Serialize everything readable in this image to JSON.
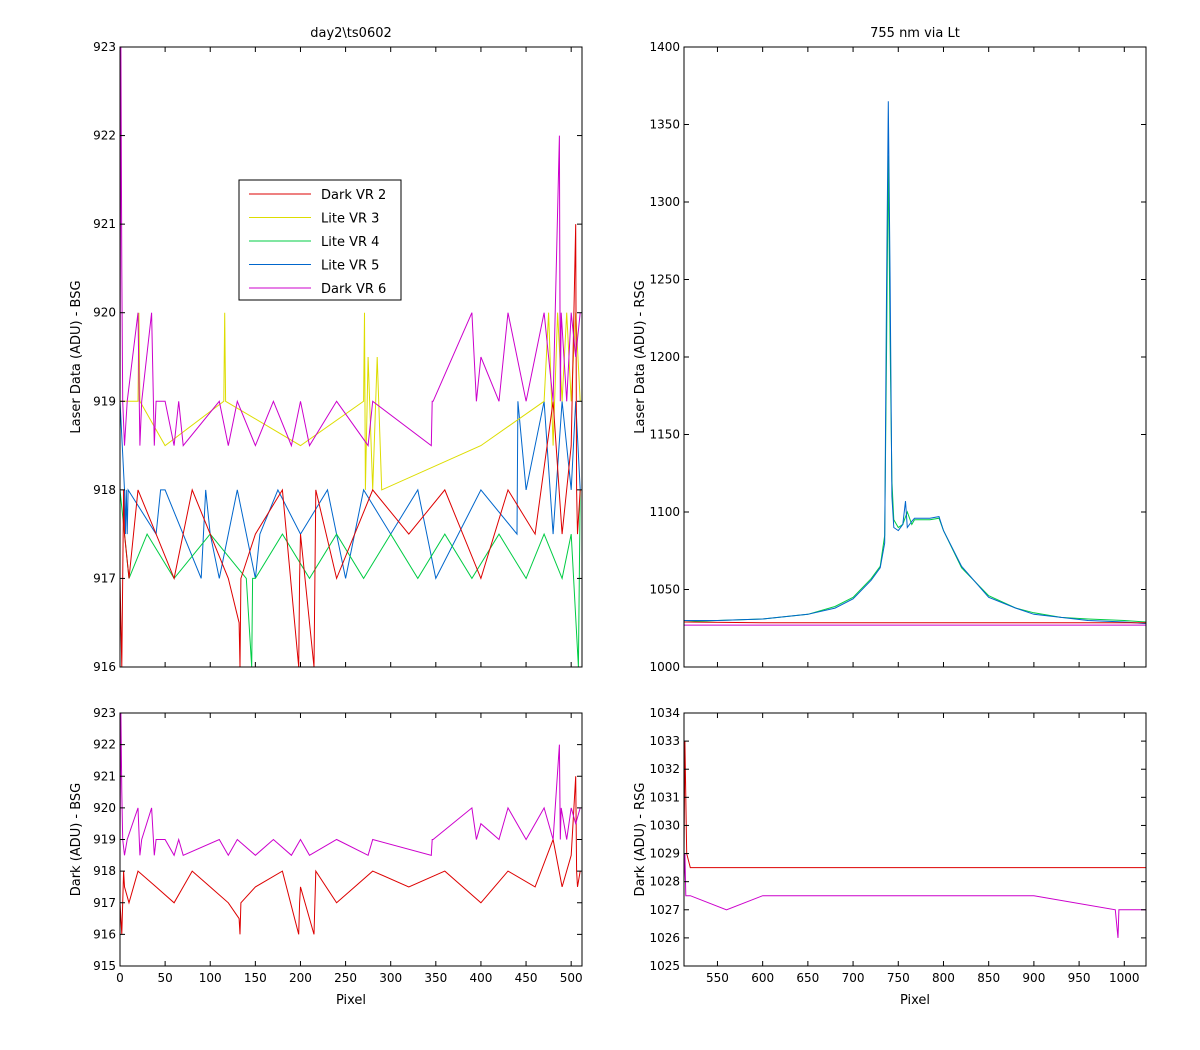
{
  "chart_data": [
    {
      "id": "tl",
      "type": "line",
      "title": "day2\\ts0602",
      "xlabel": "",
      "ylabel": "Laser Data (ADU) - BSG",
      "xlim": [
        0,
        512
      ],
      "ylim": [
        916,
        923
      ],
      "xticks": [],
      "yticks": [
        916,
        917,
        918,
        919,
        920,
        921,
        922,
        923
      ],
      "legend": {
        "position": "upper-center",
        "entries": [
          "Dark VR 2",
          "Lite VR 3",
          "Lite VR 4",
          "Lite VR 5",
          "Dark VR 6"
        ]
      },
      "series": [
        {
          "name": "Lite VR 5",
          "color": "#0066cc",
          "x": [
            0,
            5,
            6,
            7,
            8,
            9,
            40,
            45,
            50,
            90,
            95,
            100,
            110,
            130,
            150,
            155,
            175,
            200,
            230,
            250,
            270,
            300,
            330,
            350,
            400,
            440,
            441,
            450,
            470,
            480,
            490,
            500,
            505,
            510
          ],
          "y": [
            919,
            918,
            917.5,
            918,
            917.5,
            918,
            917.5,
            918,
            918,
            917,
            918,
            917.5,
            917,
            918,
            917,
            917.5,
            918,
            917.5,
            918,
            917,
            918,
            917.5,
            918,
            917,
            918,
            917.5,
            919,
            918,
            919,
            917.5,
            919,
            918,
            919,
            918
          ]
        },
        {
          "name": "Lite VR 4",
          "color": "#00cc44",
          "x": [
            0,
            5,
            10,
            30,
            60,
            100,
            140,
            146,
            147,
            150,
            180,
            210,
            240,
            270,
            300,
            330,
            360,
            390,
            420,
            450,
            470,
            490,
            500,
            508,
            509,
            510
          ],
          "y": [
            918,
            917.5,
            917,
            917.5,
            917,
            917.5,
            917,
            916,
            917,
            917,
            917.5,
            917,
            917.5,
            917,
            917.5,
            917,
            917.5,
            917,
            917.5,
            917,
            917.5,
            917,
            917.5,
            916,
            917,
            918
          ]
        },
        {
          "name": "Lite VR 3",
          "color": "#dddd00",
          "x": [
            0,
            20,
            21,
            22,
            50,
            115,
            116,
            117,
            200,
            270,
            271,
            272,
            275,
            280,
            285,
            290,
            400,
            470,
            475,
            480,
            485,
            490,
            495,
            500,
            505,
            510
          ],
          "y": [
            919,
            919,
            920,
            919,
            918.5,
            919,
            920,
            919,
            918.5,
            919,
            920,
            918,
            919.5,
            918,
            919.5,
            918,
            918.5,
            919,
            920,
            918.5,
            920,
            919,
            920,
            919,
            920,
            919
          ]
        },
        {
          "name": "Dark VR 2",
          "color": "#dd0000",
          "x": [
            0,
            2,
            3,
            4,
            5,
            10,
            20,
            40,
            60,
            80,
            100,
            120,
            132,
            133,
            134,
            150,
            180,
            198,
            199,
            200,
            215,
            216,
            217,
            240,
            280,
            320,
            360,
            400,
            430,
            460,
            480,
            490,
            500,
            505,
            506,
            507,
            510
          ],
          "y": [
            917,
            916,
            917,
            918,
            917.5,
            917,
            918,
            917.5,
            917,
            918,
            917.5,
            917,
            916.5,
            916,
            917,
            917.5,
            918,
            916,
            917,
            917.5,
            916,
            917,
            918,
            917,
            918,
            917.5,
            918,
            917,
            918,
            917.5,
            919,
            917.5,
            918.5,
            921,
            918,
            917.5,
            918
          ]
        },
        {
          "name": "Dark VR 6",
          "color": "#cc00cc",
          "x": [
            0,
            1,
            2,
            3,
            5,
            8,
            20,
            22,
            24,
            35,
            38,
            40,
            50,
            60,
            65,
            70,
            110,
            120,
            130,
            150,
            170,
            190,
            200,
            210,
            240,
            275,
            280,
            345,
            346,
            347,
            390,
            395,
            400,
            420,
            430,
            450,
            460,
            470,
            480,
            487,
            488,
            489,
            495,
            500,
            505,
            510
          ],
          "y": [
            919,
            923,
            920.5,
            919,
            918.5,
            919,
            920,
            918.5,
            919,
            920,
            918.5,
            919,
            919,
            918.5,
            919,
            918.5,
            919,
            918.5,
            919,
            918.5,
            919,
            918.5,
            919,
            918.5,
            919,
            918.5,
            919,
            918.5,
            919,
            919,
            920,
            919,
            919.5,
            919,
            920,
            919,
            919.5,
            920,
            919,
            922,
            919,
            920,
            919,
            920,
            919.5,
            920
          ]
        }
      ]
    },
    {
      "id": "tr",
      "type": "line",
      "title": "755 nm via Lt",
      "xlabel": "",
      "ylabel": "Laser Data (ADU) - RSG",
      "xlim": [
        513,
        1024
      ],
      "ylim": [
        1000,
        1400
      ],
      "xticks": [],
      "yticks": [
        1000,
        1050,
        1100,
        1150,
        1200,
        1250,
        1300,
        1350,
        1400
      ],
      "series": [
        {
          "name": "Lite VR 4",
          "color": "#00cc44",
          "x": [
            513,
            550,
            600,
            650,
            680,
            700,
            720,
            730,
            735,
            737,
            739,
            741,
            743,
            745,
            750,
            755,
            760,
            765,
            768,
            785,
            795,
            800,
            820,
            850,
            880,
            900,
            930,
            960,
            1000,
            1024
          ],
          "y": [
            1029,
            1030,
            1031,
            1034,
            1039,
            1045,
            1057,
            1065,
            1085,
            1200,
            1330,
            1210,
            1120,
            1095,
            1090,
            1092,
            1100,
            1092,
            1095,
            1095,
            1096,
            1088,
            1064,
            1046,
            1038,
            1035,
            1032,
            1031,
            1030,
            1029
          ]
        },
        {
          "name": "Lite VR 5",
          "color": "#0066cc",
          "x": [
            513,
            550,
            600,
            650,
            680,
            700,
            720,
            730,
            735,
            737,
            739,
            741,
            743,
            745,
            750,
            755,
            758,
            760,
            765,
            768,
            785,
            795,
            800,
            820,
            850,
            880,
            900,
            930,
            960,
            1000,
            1024
          ],
          "y": [
            1030,
            1030,
            1031,
            1034,
            1038,
            1044,
            1056,
            1064,
            1080,
            1240,
            1365,
            1250,
            1110,
            1090,
            1088,
            1092,
            1107,
            1090,
            1094,
            1096,
            1096,
            1097,
            1088,
            1065,
            1045,
            1038,
            1034,
            1032,
            1030,
            1029,
            1028
          ]
        },
        {
          "name": "Dark VR 2",
          "color": "#dd0000",
          "x": [
            513,
            600,
            700,
            800,
            900,
            1000,
            1024
          ],
          "y": [
            1029,
            1028.5,
            1028.5,
            1028.5,
            1028.5,
            1028.5,
            1028.5
          ]
        },
        {
          "name": "Dark VR 6",
          "color": "#cc00cc",
          "x": [
            513,
            600,
            700,
            800,
            900,
            1000,
            1024
          ],
          "y": [
            1027,
            1027,
            1027,
            1027,
            1027,
            1027,
            1027
          ]
        }
      ]
    },
    {
      "id": "bl",
      "type": "line",
      "title": "",
      "xlabel": "Pixel",
      "ylabel": "Dark (ADU) - BSG",
      "xlim": [
        0,
        512
      ],
      "ylim": [
        915,
        923
      ],
      "xticks": [
        0,
        50,
        100,
        150,
        200,
        250,
        300,
        350,
        400,
        450,
        500
      ],
      "yticks": [
        915,
        916,
        917,
        918,
        919,
        920,
        921,
        922,
        923
      ],
      "series": [
        {
          "name": "Dark VR 2",
          "color": "#dd0000",
          "x": [
            0,
            2,
            3,
            4,
            5,
            10,
            20,
            40,
            60,
            80,
            100,
            120,
            132,
            133,
            134,
            150,
            180,
            198,
            199,
            200,
            215,
            216,
            217,
            240,
            280,
            320,
            360,
            400,
            430,
            460,
            480,
            490,
            500,
            505,
            506,
            507,
            510
          ],
          "y": [
            917,
            916,
            917,
            918,
            917.5,
            917,
            918,
            917.5,
            917,
            918,
            917.5,
            917,
            916.5,
            916,
            917,
            917.5,
            918,
            916,
            917,
            917.5,
            916,
            917,
            918,
            917,
            918,
            917.5,
            918,
            917,
            918,
            917.5,
            919,
            917.5,
            918.5,
            921,
            918,
            917.5,
            918
          ]
        },
        {
          "name": "Dark VR 6",
          "color": "#cc00cc",
          "x": [
            0,
            1,
            2,
            3,
            5,
            8,
            20,
            22,
            24,
            35,
            38,
            40,
            50,
            60,
            65,
            70,
            110,
            120,
            130,
            150,
            170,
            190,
            200,
            210,
            240,
            275,
            280,
            345,
            346,
            347,
            390,
            395,
            400,
            420,
            430,
            450,
            460,
            470,
            480,
            487,
            488,
            489,
            495,
            500,
            505,
            510
          ],
          "y": [
            919,
            923,
            920.5,
            919,
            918.5,
            919,
            920,
            918.5,
            919,
            920,
            918.5,
            919,
            919,
            918.5,
            919,
            918.5,
            919,
            918.5,
            919,
            918.5,
            919,
            918.5,
            919,
            918.5,
            919,
            918.5,
            919,
            918.5,
            919,
            919,
            920,
            919,
            919.5,
            919,
            920,
            919,
            919.5,
            920,
            919,
            922,
            919,
            920,
            919,
            920,
            919.5,
            920
          ]
        }
      ]
    },
    {
      "id": "br",
      "type": "line",
      "title": "",
      "xlabel": "Pixel",
      "ylabel": "Dark (ADU) - RSG",
      "xlim": [
        513,
        1024
      ],
      "ylim": [
        1025,
        1034
      ],
      "xticks": [
        550,
        600,
        650,
        700,
        750,
        800,
        850,
        900,
        950,
        1000
      ],
      "yticks": [
        1025,
        1026,
        1027,
        1028,
        1029,
        1030,
        1031,
        1032,
        1033,
        1034
      ],
      "series": [
        {
          "name": "Dark VR 2",
          "color": "#dd0000",
          "x": [
            513,
            514,
            515,
            516,
            520,
            600,
            700,
            800,
            900,
            1000,
            1024
          ],
          "y": [
            1029,
            1033,
            1031,
            1029,
            1028.5,
            1028.5,
            1028.5,
            1028.5,
            1028.5,
            1028.5,
            1028.5
          ]
        },
        {
          "name": "Dark VR 6",
          "color": "#cc00cc",
          "x": [
            513,
            514,
            515,
            520,
            560,
            600,
            700,
            800,
            900,
            990,
            993,
            994,
            995,
            1000,
            1024
          ],
          "y": [
            1028,
            1029,
            1027.5,
            1027.5,
            1027,
            1027.5,
            1027.5,
            1027.5,
            1027.5,
            1027,
            1026,
            1027,
            1027,
            1027,
            1027
          ]
        }
      ]
    }
  ]
}
